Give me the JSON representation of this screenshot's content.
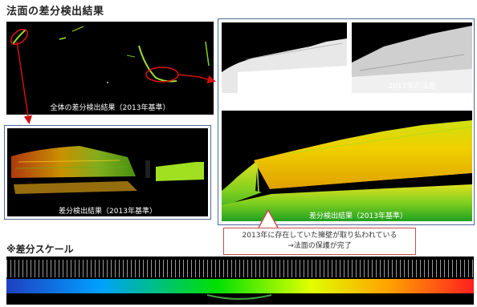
{
  "title": "法面の差分検出結果",
  "overview_caption": "全体の差分検出結果（2013年基準）",
  "detail_caption": "差分検出結果（2013年基準）",
  "slope_2013_caption": "2013年の法面",
  "slope_2017_caption": "2017年の法面",
  "result_caption": "差分検出結果（2013年基準）",
  "note": {
    "line1": "2013年に存在していた擁壁が取り払われている",
    "line2": "→法面の保護が完了"
  },
  "scale_title": "※差分スケール",
  "colors": {
    "frame": "#4a6a9a",
    "arrow": "#d01010",
    "note_border": "#c0504d",
    "scale_stops": [
      "#2040c0",
      "#00a0ff",
      "#00e000",
      "#e0ff00",
      "#ffa000",
      "#ff2020"
    ]
  }
}
